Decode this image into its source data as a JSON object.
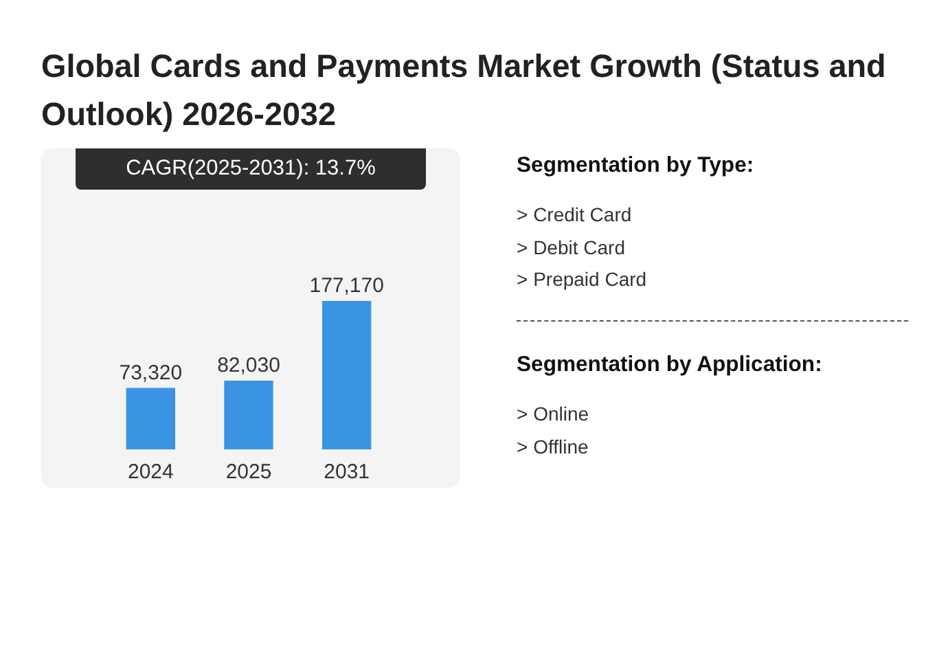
{
  "chart_data": [
    {
      "type": "bar",
      "title": "Global Cards and Payments Market Growth (Status and Outlook) 2026-2032",
      "annotations": [
        "CAGR(2025-2031): 13.7%"
      ],
      "categories": [
        "2024",
        "2025",
        "2031"
      ],
      "values": [
        73320,
        82030,
        177170
      ],
      "value_labels": [
        "73,320",
        "82,030",
        "177,170"
      ],
      "color": "#3a93e3"
    },
    {
      "type": "other",
      "title": "Segmentation by Type:",
      "annotations": [
        "> Credit Card",
        "> Debit Card",
        "> Prepaid Card"
      ]
    },
    {
      "type": "other",
      "title": "Segmentation by Application:",
      "annotations": [
        "> Online",
        "> Offline"
      ]
    }
  ]
}
